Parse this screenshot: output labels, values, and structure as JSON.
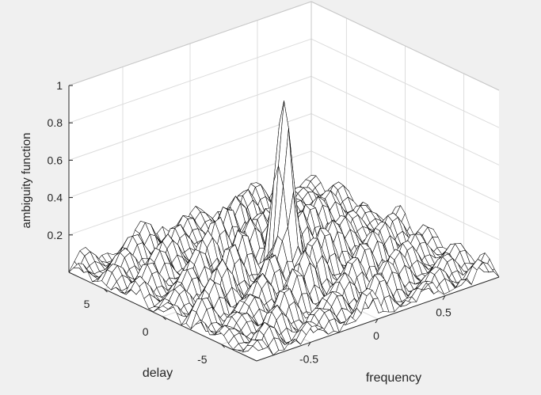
{
  "figure": {
    "background": "#f0f0f0"
  },
  "chart_data": {
    "type": "surface",
    "title": "",
    "xlabel": "frequency",
    "ylabel": "delay",
    "zlabel": "ambiguity function",
    "xlim": [
      -0.9,
      0.9
    ],
    "ylim": [
      -8,
      8
    ],
    "zlim": [
      0,
      1
    ],
    "x_ticks": [
      -0.5,
      0,
      0.5
    ],
    "x_tick_labels": [
      "-0.5",
      "0",
      "0.5"
    ],
    "y_ticks": [
      -5,
      0,
      5
    ],
    "y_tick_labels": [
      "-5",
      "0",
      "5"
    ],
    "z_ticks": [
      0.2,
      0.4,
      0.6,
      0.8,
      1
    ],
    "z_tick_labels": [
      "0.2",
      "0.4",
      "0.6",
      "0.8",
      "1"
    ],
    "grid": true,
    "box": "full",
    "surface": {
      "peak": {
        "frequency": 0,
        "delay": 0,
        "value": 0.93
      },
      "sidelobe_level": 0.3,
      "mesh_color": "#000000",
      "face_color": "#ffffff"
    },
    "colors": {
      "axis": "#262626",
      "grid": "#dcdcdc",
      "mesh": "#000000",
      "surface": "#ffffff"
    }
  }
}
